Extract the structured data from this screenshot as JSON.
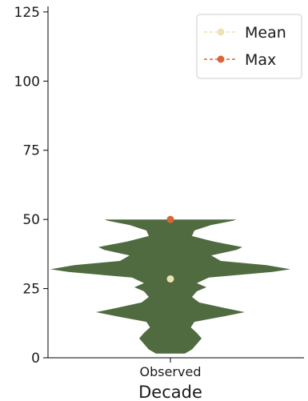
{
  "chart_data": {
    "type": "violin",
    "title": "",
    "xlabel": "Decade",
    "ylabel": "",
    "ylim": [
      0,
      127
    ],
    "yticks": [
      0,
      25,
      50,
      75,
      100,
      125
    ],
    "categories": [
      "Observed"
    ],
    "grid": false,
    "legend_position": "top-right",
    "series": [
      {
        "name": "Observed",
        "color": "#4f6b3f",
        "density_profile": [
          {
            "y": 1.5,
            "w": 0.12
          },
          {
            "y": 3,
            "w": 0.18
          },
          {
            "y": 5,
            "w": 0.22
          },
          {
            "y": 7,
            "w": 0.26
          },
          {
            "y": 9,
            "w": 0.22
          },
          {
            "y": 11,
            "w": 0.17
          },
          {
            "y": 13,
            "w": 0.2
          },
          {
            "y": 15,
            "w": 0.45
          },
          {
            "y": 16.5,
            "w": 0.62
          },
          {
            "y": 18,
            "w": 0.45
          },
          {
            "y": 20,
            "w": 0.24
          },
          {
            "y": 22,
            "w": 0.18
          },
          {
            "y": 24,
            "w": 0.22
          },
          {
            "y": 25.5,
            "w": 0.3
          },
          {
            "y": 27,
            "w": 0.22
          },
          {
            "y": 29,
            "w": 0.32
          },
          {
            "y": 31,
            "w": 0.85
          },
          {
            "y": 32,
            "w": 1.0
          },
          {
            "y": 33.5,
            "w": 0.8
          },
          {
            "y": 35,
            "w": 0.42
          },
          {
            "y": 37,
            "w": 0.34
          },
          {
            "y": 39,
            "w": 0.55
          },
          {
            "y": 40,
            "w": 0.6
          },
          {
            "y": 42,
            "w": 0.36
          },
          {
            "y": 44,
            "w": 0.18
          },
          {
            "y": 46,
            "w": 0.2
          },
          {
            "y": 48,
            "w": 0.34
          },
          {
            "y": 49.5,
            "w": 0.52
          },
          {
            "y": 50,
            "w": 0.55
          }
        ]
      }
    ],
    "markers": [
      {
        "name": "Mean",
        "y": 28.5,
        "color": "#ece3b4"
      },
      {
        "name": "Max",
        "y": 50,
        "color": "#d9643a"
      }
    ],
    "legend": [
      {
        "label": "Mean",
        "color": "#ece3b4",
        "style": "dashed-line-dot"
      },
      {
        "label": "Max",
        "color": "#d9643a",
        "style": "dashed-line-dot"
      }
    ]
  }
}
